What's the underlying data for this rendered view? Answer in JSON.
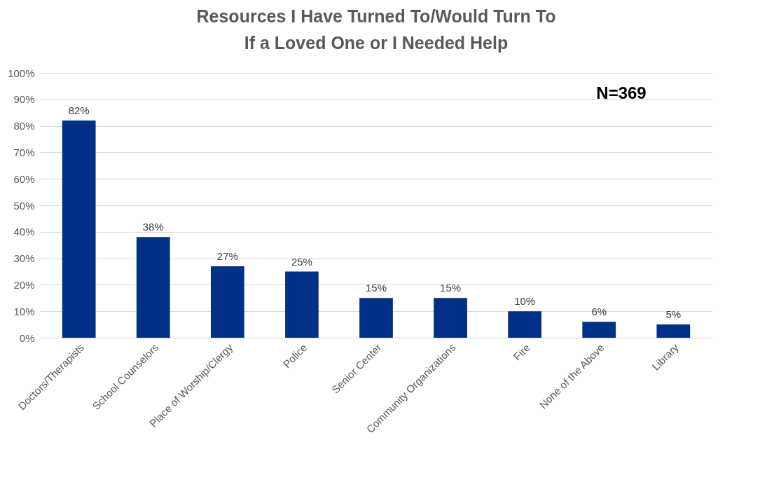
{
  "chart_data": {
    "type": "bar",
    "title": [
      "Resources I Have Turned To/Would Turn To",
      "If a Loved One or I Needed Help"
    ],
    "categories": [
      "Doctors/Therapists",
      "School Counselors",
      "Place of Worship/Clergy",
      "Police",
      "Senior Center",
      "Community Organizations",
      "Fire",
      "None of the Above",
      "Library"
    ],
    "values": [
      82,
      38,
      27,
      25,
      15,
      15,
      10,
      6,
      5
    ],
    "value_labels": [
      "82%",
      "38%",
      "27%",
      "25%",
      "15%",
      "15%",
      "10%",
      "6%",
      "5%"
    ],
    "color": "#003087",
    "ylim": [
      0,
      100
    ],
    "yticks": [
      {
        "value": 0,
        "label": "0%"
      },
      {
        "value": 10,
        "label": "10%"
      },
      {
        "value": 20,
        "label": "20%"
      },
      {
        "value": 30,
        "label": "30%"
      },
      {
        "value": 40,
        "label": "40%"
      },
      {
        "value": 50,
        "label": "50%"
      },
      {
        "value": 60,
        "label": "60%"
      },
      {
        "value": 70,
        "label": "70%"
      },
      {
        "value": 80,
        "label": "80%"
      },
      {
        "value": 90,
        "label": "90%"
      },
      {
        "value": 100,
        "label": "100%"
      }
    ],
    "grid": "y",
    "annotations": [
      "N=369"
    ]
  }
}
